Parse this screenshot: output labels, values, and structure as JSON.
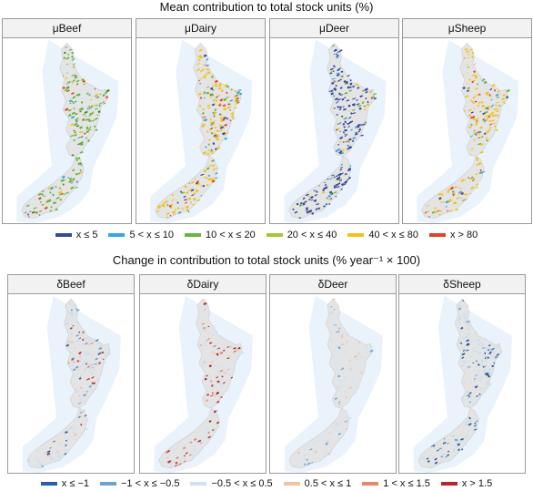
{
  "top": {
    "title": "Mean contribution to total stock units (%)",
    "panels": [
      {
        "label": "μBeef",
        "dominant": "#69b33f",
        "speckle": [
          "#69b33f",
          "#4a7f2c",
          "#f2c21b",
          "#35a7de",
          "#e4412a"
        ]
      },
      {
        "label": "μDairy",
        "dominant": "#f2c21b",
        "speckle": [
          "#f2c21b",
          "#69b33f",
          "#35a7de",
          "#e4412a",
          "#34499b"
        ]
      },
      {
        "label": "μDeer",
        "dominant": "#34499b",
        "speckle": [
          "#34499b",
          "#34499b",
          "#69b33f",
          "#35a7de",
          "#f2c21b"
        ]
      },
      {
        "label": "μSheep",
        "dominant": "#f2c21b",
        "speckle": [
          "#f2c21b",
          "#69b33f",
          "#35a7de",
          "#e4412a",
          "#34499b"
        ]
      }
    ],
    "legend": [
      {
        "label": "x ≤ 5",
        "color": "#34499b"
      },
      {
        "label": "5 < x ≤ 10",
        "color": "#35a7de"
      },
      {
        "label": "10 < x ≤ 20",
        "color": "#69b33f"
      },
      {
        "label": "20 < x ≤ 40",
        "color": "#a3c93a"
      },
      {
        "label": "40 < x ≤ 80",
        "color": "#f2c21b"
      },
      {
        "label": "x > 80",
        "color": "#e4412a"
      }
    ]
  },
  "bottom": {
    "title": "Change in contribution to total stock units (% year⁻¹ × 100)",
    "panels": [
      {
        "label": "δBeef",
        "dominant": "#c9ddf0",
        "speckle": [
          "#c9ddf0",
          "#6da2d3",
          "#2c5fa2",
          "#c8352a",
          "#f4c3a6"
        ]
      },
      {
        "label": "δDairy",
        "dominant": "#d0e2f2",
        "speckle": [
          "#c8352a",
          "#e9856c",
          "#f4c3a6",
          "#d0e2f2",
          "#9e1f1f"
        ]
      },
      {
        "label": "δDeer",
        "dominant": "#d7e7f4",
        "speckle": [
          "#d7e7f4",
          "#c9ddf0",
          "#f4c3a6",
          "#6da2d3",
          "#d7e7f4"
        ]
      },
      {
        "label": "δSheep",
        "dominant": "#c9ddf0",
        "speckle": [
          "#2c5fa2",
          "#6da2d3",
          "#2c5fa2",
          "#c9ddf0",
          "#234f8f"
        ]
      }
    ],
    "legend": [
      {
        "label": "x ≤ −1",
        "color": "#2c5fa2"
      },
      {
        "label": "−1 < x ≤ −0.5",
        "color": "#6da2d3"
      },
      {
        "label": "−0.5 < x ≤ 0.5",
        "color": "#cfe0f0"
      },
      {
        "label": "0.5 < x ≤ 1",
        "color": "#f4c3a6"
      },
      {
        "label": "1 < x ≤ 1.5",
        "color": "#e9856c"
      },
      {
        "label": "x > 1.5",
        "color": "#b8262a"
      }
    ]
  }
}
